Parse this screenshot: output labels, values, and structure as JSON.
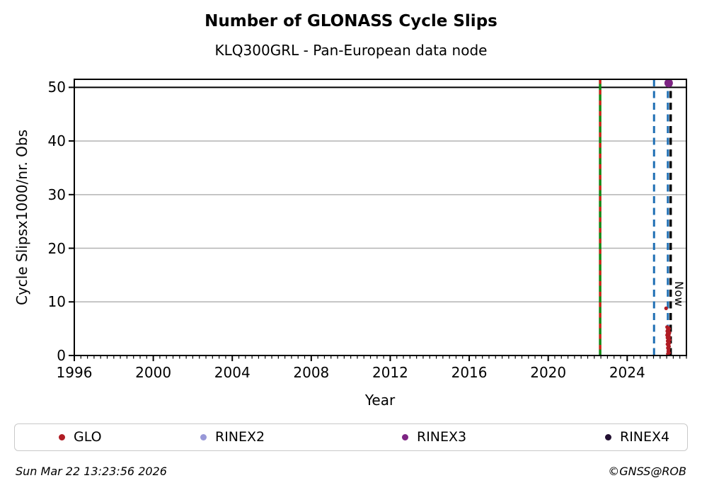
{
  "title": "Number of GLONASS Cycle Slips",
  "subtitle": "KLQ300GRL - Pan-European data node",
  "footer": {
    "timestamp": "Sun Mar 22 13:23:56 2026",
    "credit": "©GNSS@ROB"
  },
  "legend": {
    "items": [
      {
        "label": "GLO",
        "color": "#b01c24"
      },
      {
        "label": "RINEX2",
        "color": "#9898d8"
      },
      {
        "label": "RINEX3",
        "color": "#7d2483"
      },
      {
        "label": "RINEX4",
        "color": "#221031"
      }
    ]
  },
  "chart_data": {
    "type": "scatter",
    "title": "Number of GLONASS Cycle Slips",
    "subtitle": "KLQ300GRL - Pan-European data node",
    "xlabel": "Year",
    "ylabel": "Cycle Slipsx1000/nr. Obs",
    "xlim": [
      1996,
      2027
    ],
    "ylim": [
      0,
      51.5
    ],
    "x_major_ticks": [
      1996,
      2000,
      2004,
      2008,
      2012,
      2016,
      2020,
      2024
    ],
    "x_minor_tick_step_years": 0.3333,
    "y_ticks": [
      0,
      10,
      20,
      30,
      40,
      50
    ],
    "grid": "horizontal-only",
    "grid_color": "#b3b3b3",
    "cap_line": {
      "value": 50,
      "color": "#000000"
    },
    "now_label": "Now",
    "now_year": 2026.2,
    "vlines": [
      {
        "name": "event-green-solid",
        "year": 2022.63,
        "color": "#138913",
        "style": "solid",
        "width": 3.5
      },
      {
        "name": "event-red-dashed",
        "year": 2022.63,
        "color": "#e01818",
        "style": "dashed",
        "width": 3,
        "dash": "6.5 8.5"
      },
      {
        "name": "event-blue-dashed-1",
        "year": 2025.36,
        "color": "#1f6fb4",
        "style": "dashed",
        "width": 3,
        "dash": "10 6.5"
      },
      {
        "name": "event-blue-dashed-2",
        "year": 2026.06,
        "color": "#1f6fb4",
        "style": "dashed",
        "width": 3,
        "dash": "10 6.5"
      },
      {
        "name": "now-line",
        "year": 2026.2,
        "color": "#000000",
        "style": "dashed",
        "width": 3.5,
        "dash": "10 6.5"
      }
    ],
    "series": [
      {
        "name": "GLO",
        "color": "#b01c24",
        "marker_radius": 2.6,
        "points": [
          [
            2025.97,
            8.8
          ],
          [
            2026.02,
            5.3
          ],
          [
            2026.08,
            5.15
          ],
          [
            2026.12,
            5.0
          ],
          [
            2026.06,
            4.85
          ],
          [
            2026.1,
            4.7
          ],
          [
            2026.03,
            4.55
          ],
          [
            2026.09,
            4.4
          ],
          [
            2026.14,
            4.25
          ],
          [
            2026.05,
            4.1
          ],
          [
            2026.11,
            3.95
          ],
          [
            2026.02,
            3.8
          ],
          [
            2026.08,
            3.6
          ],
          [
            2026.13,
            3.45
          ],
          [
            2026.04,
            3.3
          ],
          [
            2026.1,
            3.1
          ],
          [
            2026.15,
            2.9
          ],
          [
            2026.05,
            2.7
          ],
          [
            2026.09,
            2.5
          ],
          [
            2026.13,
            2.3
          ],
          [
            2026.04,
            2.1
          ],
          [
            2026.08,
            1.9
          ],
          [
            2026.12,
            1.7
          ],
          [
            2026.06,
            1.4
          ],
          [
            2026.1,
            1.1
          ],
          [
            2026.08,
            0.8
          ],
          [
            2026.12,
            0.5
          ],
          [
            2026.06,
            0.3
          ]
        ]
      },
      {
        "name": "RINEX2",
        "color": "#9898d8",
        "marker_radius": 4,
        "points": []
      },
      {
        "name": "RINEX3",
        "color": "#7d2483",
        "marker_radius": 6,
        "points": [
          [
            2026.1,
            50.8
          ]
        ]
      },
      {
        "name": "RINEX4",
        "color": "#221031",
        "marker_radius": 4,
        "points": []
      }
    ],
    "legend_position": "bottom"
  }
}
